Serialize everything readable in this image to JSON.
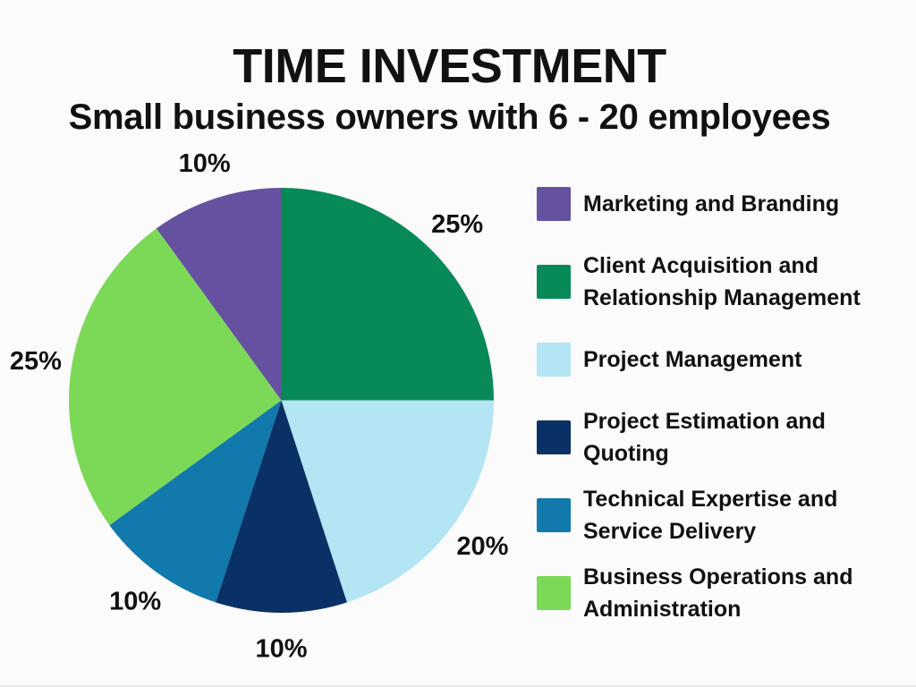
{
  "header": {
    "title": "TIME INVESTMENT",
    "subtitle": "Small business owners with 6 - 20 employees"
  },
  "chart_data": {
    "type": "pie",
    "title": "TIME INVESTMENT",
    "subtitle": "Small business owners with 6 - 20 employees",
    "unit": "percent",
    "start_angle_deg": 0,
    "direction": "clockwise",
    "legend_position": "right",
    "slices": [
      {
        "label": "Client Acquisition and Relationship Management",
        "value": 25,
        "data_label": "25%",
        "color": "#088a58"
      },
      {
        "label": "Project Management",
        "value": 20,
        "data_label": "20%",
        "color": "#b3e5f4"
      },
      {
        "label": "Project Estimation and Quoting",
        "value": 10,
        "data_label": "10%",
        "color": "#0a3166"
      },
      {
        "label": "Technical Expertise and Service Delivery",
        "value": 10,
        "data_label": "10%",
        "color": "#1179ac"
      },
      {
        "label": "Business Operations and Administration",
        "value": 25,
        "data_label": "25%",
        "color": "#7cd957"
      },
      {
        "label": "Marketing and Branding",
        "value": 10,
        "data_label": "10%",
        "color": "#65519f"
      }
    ]
  },
  "legend": {
    "items": [
      {
        "label": "Marketing and Branding",
        "color": "#65519f"
      },
      {
        "label": "Client Acquisition and Relationship Management",
        "color": "#088a58"
      },
      {
        "label": "Project Management",
        "color": "#b3e5f4"
      },
      {
        "label": "Project Estimation and Quoting",
        "color": "#0a3166"
      },
      {
        "label": "Technical Expertise and Service Delivery",
        "color": "#1179ac"
      },
      {
        "label": "Business Operations and Administration",
        "color": "#7cd957"
      }
    ]
  },
  "colors": {
    "background": "#fbfbfb",
    "text": "#111111"
  }
}
